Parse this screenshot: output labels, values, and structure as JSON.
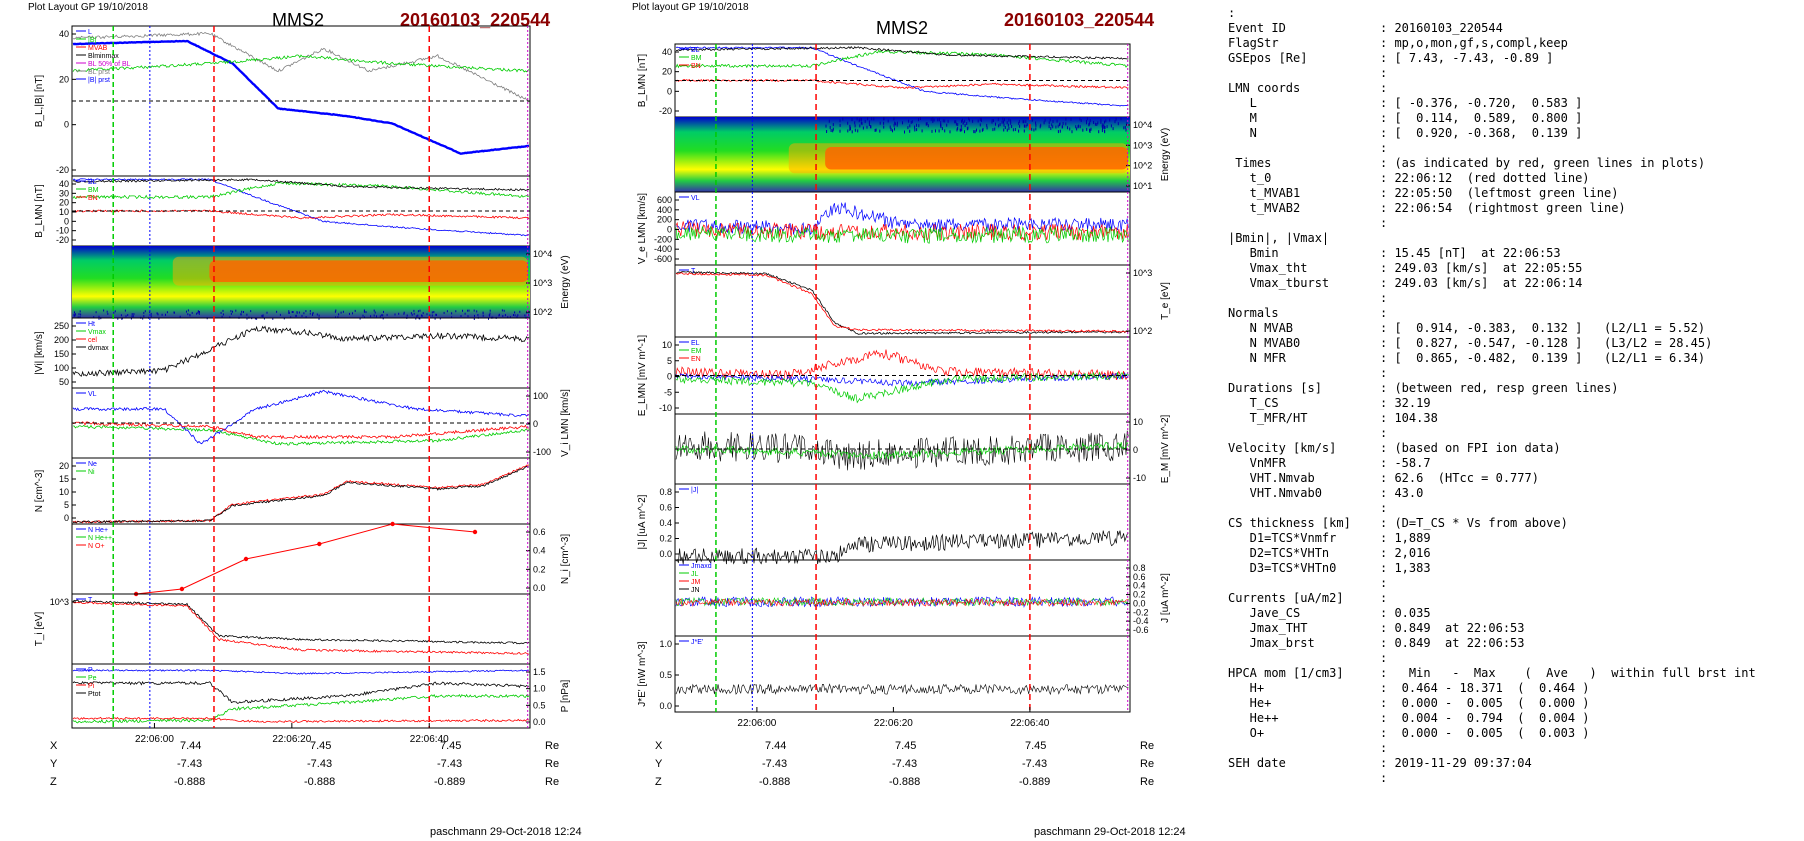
{
  "left": {
    "header": "Plot Layout GP 19/10/2018",
    "spacecraft": "MMS2",
    "event": "20160103_220544",
    "footer": "paschmann 29-Oct-2018 12:24",
    "time_ticks": [
      "22:06:00",
      "22:06:20",
      "22:06:40"
    ],
    "pos_labels": [
      "X",
      "Y",
      "Z"
    ],
    "pos_unit": "Re",
    "pos_values": [
      [
        "7.44",
        "7.45",
        "7.45"
      ],
      [
        "-7.43",
        "-7.43",
        "-7.43"
      ],
      [
        "-0.888",
        "-0.888",
        "-0.889"
      ]
    ]
  },
  "middle": {
    "header": "Plot layout GP 19/10/2018",
    "spacecraft": "MMS2",
    "event": "20160103_220544",
    "footer": "paschmann 29-Oct-2018 12:24",
    "time_ticks": [
      "22:06:00",
      "22:06:20",
      "22:06:40"
    ],
    "pos_labels": [
      "X",
      "Y",
      "Z"
    ],
    "pos_unit": "Re",
    "pos_values": [
      [
        "7.44",
        "7.45",
        "7.45"
      ],
      [
        "-7.43",
        "-7.43",
        "-7.43"
      ],
      [
        "-0.888",
        "-0.888",
        "-0.889"
      ]
    ]
  },
  "colors": {
    "red": "#ff0000",
    "green": "#00cc00",
    "blue": "#0000ff",
    "black": "#000000",
    "dark_red": "#8b0000",
    "magenta": "#cc00cc",
    "gray": "#808080"
  },
  "chart_data": [
    {
      "type": "line",
      "title": "MMS2",
      "panels": [
        {
          "id": "BL",
          "ylabel": "B_L,|B| [nT]",
          "ylim": [
            -30,
            50
          ],
          "ticks": [
            "40",
            "20",
            "0",
            "-20"
          ],
          "legend": [
            "L",
            "|B|",
            "MVAB",
            "Blminmax",
            "BL 50% of BL",
            "BL prst",
            "|B| prst"
          ]
        },
        {
          "id": "BLMN",
          "ylabel": "B_LMN [nT]",
          "ylim": [
            -20,
            50
          ],
          "ticks": [
            "40",
            "30",
            "20",
            "10",
            "0",
            "-10",
            "-20"
          ],
          "legend": [
            "BL",
            "BM",
            "BN"
          ]
        },
        {
          "id": "spec",
          "ylabel": "Energy (eV)",
          "ticks": [
            "10^4",
            "10^3",
            "10^2"
          ]
        },
        {
          "id": "Vi",
          "ylabel": "|Vi| [km/s]",
          "ylim": [
            50,
            250
          ],
          "ticks": [
            "250",
            "200",
            "150",
            "100",
            "50"
          ],
          "legend": [
            "Ht",
            "Vmax",
            "cel",
            "dvmax"
          ]
        },
        {
          "id": "ViLMN",
          "ylabel": "V_i LMN [km/s]",
          "ticks": [
            "100",
            "0",
            "-100"
          ],
          "legend": [
            "VL"
          ]
        },
        {
          "id": "N",
          "ylabel": "N [cm^-3]",
          "ylim": [
            0,
            25
          ],
          "ticks": [
            "20",
            "15",
            "10",
            "5",
            "0"
          ],
          "legend": [
            "Ne",
            "Ni"
          ]
        },
        {
          "id": "Ni",
          "ylabel": "N_i [cm^-3]",
          "ylim": [
            0,
            0.7
          ],
          "ticks": [
            "0.6",
            "0.4",
            "0.2",
            "0.0"
          ],
          "legend": [
            "N He+",
            "N He++",
            "N O+"
          ],
          "series": [
            {
              "name": "N He++",
              "x": [
                0.14,
                0.24,
                0.38,
                0.54,
                0.7,
                0.88
              ],
              "y": [
                0.0,
                0.05,
                0.35,
                0.5,
                0.7,
                0.62
              ]
            }
          ]
        },
        {
          "id": "Ti",
          "ylabel": "T_i [eV]",
          "ticks": [
            "10^3"
          ],
          "legend": [
            "T"
          ]
        },
        {
          "id": "P",
          "ylabel": "P [nPa]",
          "ylim": [
            0,
            1.5
          ],
          "ticks": [
            "1.5",
            "1.0",
            "0.5",
            "0.0"
          ],
          "legend": [
            "P",
            "Pe",
            "Pi",
            "Ptot"
          ]
        }
      ],
      "x_ticks": [
        "22:06:00",
        "22:06:20",
        "22:06:40"
      ]
    },
    {
      "type": "line",
      "title": "MMS2",
      "panels": [
        {
          "id": "BLMN",
          "ylabel": "B_LMN [nT]",
          "ylim": [
            -30,
            50
          ],
          "ticks": [
            "40",
            "20",
            "0",
            "-20"
          ],
          "legend": [
            "BL",
            "BM",
            "BN"
          ]
        },
        {
          "id": "spec",
          "ylabel": "Energy (eV)",
          "ticks": [
            "10^4",
            "10^3",
            "10^2",
            "10^1"
          ]
        },
        {
          "id": "Ve",
          "ylabel": "V_e LMN [km/s]",
          "ylim": [
            -600,
            600
          ],
          "ticks": [
            "600",
            "400",
            "200",
            "0",
            "-200",
            "-400",
            "-600"
          ],
          "legend": [
            "VL"
          ]
        },
        {
          "id": "Te",
          "ylabel": "T_e [eV]",
          "ticks": [
            "10^3",
            "10^2"
          ],
          "legend": [
            "T"
          ]
        },
        {
          "id": "E",
          "ylabel": "E_LMN [mV m^-1]",
          "ylim": [
            -10,
            12
          ],
          "ticks": [
            "10",
            "5",
            "0",
            "-5",
            "-10"
          ],
          "legend": [
            "EL",
            "EM",
            "EN"
          ]
        },
        {
          "id": "EM",
          "ylabel": "E_M [mV m^-2]",
          "ticks": [
            "10",
            "0",
            "-10"
          ]
        },
        {
          "id": "J",
          "ylabel": "|J| [uA m^-2]",
          "ylim": [
            0,
            0.8
          ],
          "ticks": [
            "0.8",
            "0.6",
            "0.4",
            "0.2",
            "0.0"
          ],
          "legend": [
            "|J|"
          ]
        },
        {
          "id": "JLMN",
          "ylabel": "J [uA m^-2]",
          "ylim": [
            -0.6,
            0.8
          ],
          "ticks": [
            "0.8",
            "0.6",
            "0.4",
            "0.2",
            "0.0",
            "-0.2",
            "-0.4",
            "-0.6"
          ],
          "legend": [
            "Jmaxd",
            "JL",
            "JM",
            "JN"
          ]
        },
        {
          "id": "JE",
          "ylabel": "J*E' [nW m^-3]",
          "ylim": [
            -0.5,
            1.2
          ],
          "ticks": [
            "1.0",
            "0.5",
            "0.0"
          ],
          "legend": [
            "J*E'"
          ]
        }
      ],
      "x_ticks": [
        "22:06:00",
        "22:06:20",
        "22:06:40"
      ]
    }
  ],
  "info": {
    "leading": ":",
    "rows": [
      {
        "k": "Event ID",
        "v": ": 20160103_220544"
      },
      {
        "k": "FlagStr",
        "v": ": mp,o,mon,gf,s,compl,keep"
      },
      {
        "k": "GSEpos [Re]",
        "v": ": [ 7.43, -7.43, -0.89 ]"
      },
      {
        "k": "",
        "v": ":"
      },
      {
        "k": "LMN coords",
        "v": ":"
      },
      {
        "k": "   L",
        "v": ": [ -0.376, -0.720,  0.583 ]"
      },
      {
        "k": "   M",
        "v": ": [  0.114,  0.589,  0.800 ]"
      },
      {
        "k": "   N",
        "v": ": [  0.920, -0.368,  0.139 ]"
      },
      {
        "k": "",
        "v": ":"
      },
      {
        "k": " Times",
        "v": ": (as indicated by red, green lines in plots)"
      },
      {
        "k": "   t_0",
        "v": ": 22:06:12  (red dotted line)"
      },
      {
        "k": "   t_MVAB1",
        "v": ": 22:05:50  (leftmost green line)"
      },
      {
        "k": "   t_MVAB2",
        "v": ": 22:06:54  (rightmost green line)"
      },
      {
        "k": "",
        "v": ":"
      },
      {
        "k": "|Bmin|, |Vmax|",
        "v": ""
      },
      {
        "k": "   Bmin",
        "v": ": 15.45 [nT]  at 22:06:53"
      },
      {
        "k": "   Vmax_tht",
        "v": ": 249.03 [km/s]  at 22:05:55"
      },
      {
        "k": "   Vmax_tburst",
        "v": ": 249.03 [km/s]  at 22:06:14"
      },
      {
        "k": "",
        "v": ":"
      },
      {
        "k": "Normals",
        "v": ":"
      },
      {
        "k": "   N MVAB",
        "v": ": [  0.914, -0.383,  0.132 ]   (L2/L1 = 5.52)"
      },
      {
        "k": "   N MVAB0",
        "v": ": [  0.827, -0.547, -0.128 ]   (L3/L2 = 28.45)"
      },
      {
        "k": "   N MFR",
        "v": ": [  0.865, -0.482,  0.139 ]   (L2/L1 = 6.34)"
      },
      {
        "k": "",
        "v": ":"
      },
      {
        "k": "Durations [s]",
        "v": ": (between red, resp green lines)"
      },
      {
        "k": "   T_CS",
        "v": ": 32.19"
      },
      {
        "k": "   T_MFR/HT",
        "v": ": 104.38"
      },
      {
        "k": "",
        "v": ":"
      },
      {
        "k": "Velocity [km/s]",
        "v": ": (based on FPI ion data)"
      },
      {
        "k": "   VnMFR",
        "v": ": -58.7"
      },
      {
        "k": "   VHT.Nmvab",
        "v": ": 62.6  (HTcc = 0.777)"
      },
      {
        "k": "   VHT.Nmvab0",
        "v": ": 43.0"
      },
      {
        "k": "",
        "v": ":"
      },
      {
        "k": "CS thickness [km]",
        "v": ": (D=T_CS * Vs from above)"
      },
      {
        "k": "   D1=TCS*Vnmfr",
        "v": ": 1,889"
      },
      {
        "k": "   D2=TCS*VHTn",
        "v": ": 2,016"
      },
      {
        "k": "   D3=TCS*VHTn0",
        "v": ": 1,383"
      },
      {
        "k": "",
        "v": ":"
      },
      {
        "k": "Currents [uA/m2]",
        "v": ":"
      },
      {
        "k": "   Jave_CS",
        "v": ": 0.035"
      },
      {
        "k": "   Jmax_THT",
        "v": ": 0.849  at 22:06:53"
      },
      {
        "k": "   Jmax_brst",
        "v": ": 0.849  at 22:06:53"
      },
      {
        "k": "",
        "v": ":"
      },
      {
        "k": "HPCA mom [1/cm3]",
        "v": ":   Min   -  Max    (  Ave   )  within full brst int"
      },
      {
        "k": "   H+",
        "v": ":  0.464 - 18.371  (  0.464 )"
      },
      {
        "k": "   He+",
        "v": ":  0.000 -  0.005  (  0.000 )"
      },
      {
        "k": "   He++",
        "v": ":  0.004 -  0.794  (  0.004 )"
      },
      {
        "k": "   O+",
        "v": ":  0.000 -  0.005  (  0.003 )"
      },
      {
        "k": "",
        "v": ":"
      },
      {
        "k": "SEH date",
        "v": ": 2019-11-29 09:37:04"
      },
      {
        "k": "",
        "v": ":"
      }
    ]
  }
}
